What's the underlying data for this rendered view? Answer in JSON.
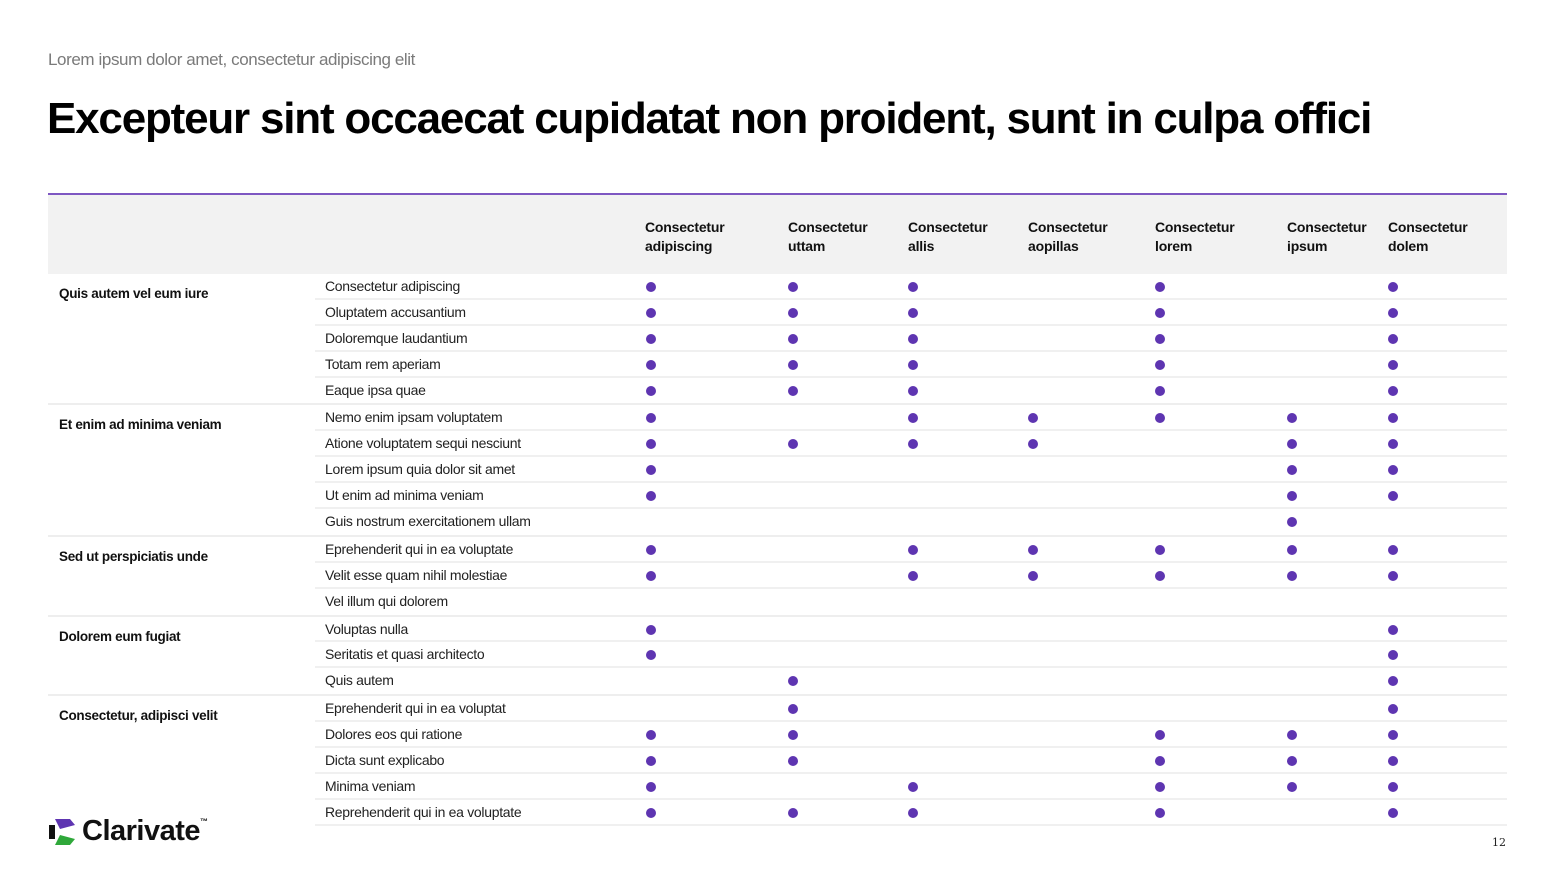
{
  "header": {
    "subtitle": "Lorem ipsum dolor amet, consectetur adipiscing elit",
    "title": "Excepteur sint occaecat cupidatat non proident, sunt in culpa offici"
  },
  "colors": {
    "accent_line": "#7e57c2",
    "dot": "#5e35b1",
    "header_bg": "#f2f2f2",
    "logo_purple": "#5e35b1",
    "logo_green": "#2fa83a"
  },
  "table": {
    "columns": [
      {
        "line1": "Consectetur",
        "line2": "adipiscing"
      },
      {
        "line1": "Consectetur",
        "line2": "uttam"
      },
      {
        "line1": "Consectetur",
        "line2": "allis"
      },
      {
        "line1": "Consectetur",
        "line2": "aopillas"
      },
      {
        "line1": "Consectetur",
        "line2": "lorem"
      },
      {
        "line1": "Consectetur",
        "line2": "ipsum"
      },
      {
        "line1": "Consectetur",
        "line2": "dolem"
      }
    ],
    "groups": [
      {
        "label": "Quis autem vel eum iure",
        "rows": [
          {
            "label": "Consectetur adipiscing",
            "marks": [
              1,
              1,
              1,
              0,
              1,
              0,
              1
            ]
          },
          {
            "label": "Oluptatem accusantium",
            "marks": [
              1,
              1,
              1,
              0,
              1,
              0,
              1
            ]
          },
          {
            "label": "Doloremque laudantium",
            "marks": [
              1,
              1,
              1,
              0,
              1,
              0,
              1
            ]
          },
          {
            "label": "Totam rem aperiam",
            "marks": [
              1,
              1,
              1,
              0,
              1,
              0,
              1
            ]
          },
          {
            "label": "Eaque ipsa quae",
            "marks": [
              1,
              1,
              1,
              0,
              1,
              0,
              1
            ]
          }
        ]
      },
      {
        "label": "Et enim ad minima veniam",
        "rows": [
          {
            "label": "Nemo enim ipsam voluptatem",
            "marks": [
              1,
              0,
              1,
              1,
              1,
              1,
              1
            ]
          },
          {
            "label": "Atione voluptatem sequi nesciunt",
            "marks": [
              1,
              1,
              1,
              1,
              0,
              1,
              1
            ]
          },
          {
            "label": "Lorem ipsum quia dolor sit amet",
            "marks": [
              1,
              0,
              0,
              0,
              0,
              1,
              1
            ]
          },
          {
            "label": "Ut enim ad minima veniam",
            "marks": [
              1,
              0,
              0,
              0,
              0,
              1,
              1
            ]
          },
          {
            "label": "Guis nostrum exercitationem ullam",
            "marks": [
              0,
              0,
              0,
              0,
              0,
              1,
              0
            ]
          }
        ]
      },
      {
        "label": "Sed ut perspiciatis unde",
        "rows": [
          {
            "label": "Eprehenderit qui in ea voluptate",
            "marks": [
              1,
              0,
              1,
              1,
              1,
              1,
              1
            ]
          },
          {
            "label": "Velit esse quam nihil molestiae",
            "marks": [
              1,
              0,
              1,
              1,
              1,
              1,
              1
            ]
          },
          {
            "label": "Vel illum qui dolorem",
            "marks": [
              0,
              0,
              0,
              0,
              0,
              0,
              0
            ]
          }
        ]
      },
      {
        "label": "Dolorem eum fugiat",
        "rows": [
          {
            "label": "Voluptas nulla",
            "marks": [
              1,
              0,
              0,
              0,
              0,
              0,
              1
            ]
          },
          {
            "label": "Seritatis et quasi architecto",
            "marks": [
              1,
              0,
              0,
              0,
              0,
              0,
              1
            ]
          },
          {
            "label": "Quis autem",
            "marks": [
              0,
              1,
              0,
              0,
              0,
              0,
              1
            ]
          }
        ]
      },
      {
        "label": "Consectetur, adipisci velit",
        "rows": [
          {
            "label": "Eprehenderit qui in ea voluptat",
            "marks": [
              0,
              1,
              0,
              0,
              0,
              0,
              1
            ]
          },
          {
            "label": "Dolores eos qui ratione",
            "marks": [
              1,
              1,
              0,
              0,
              1,
              1,
              1
            ]
          },
          {
            "label": "Dicta sunt explicabo",
            "marks": [
              1,
              1,
              0,
              0,
              1,
              1,
              1
            ]
          },
          {
            "label": "Minima veniam",
            "marks": [
              1,
              0,
              1,
              0,
              1,
              1,
              1
            ]
          },
          {
            "label": "Reprehenderit qui in ea voluptate",
            "marks": [
              1,
              1,
              1,
              0,
              1,
              0,
              1
            ]
          }
        ]
      }
    ]
  },
  "footer": {
    "logo_text": "Clarivate",
    "logo_tm": "™",
    "logo_icon": "clarivate-logo-mark",
    "page_number": "12"
  }
}
